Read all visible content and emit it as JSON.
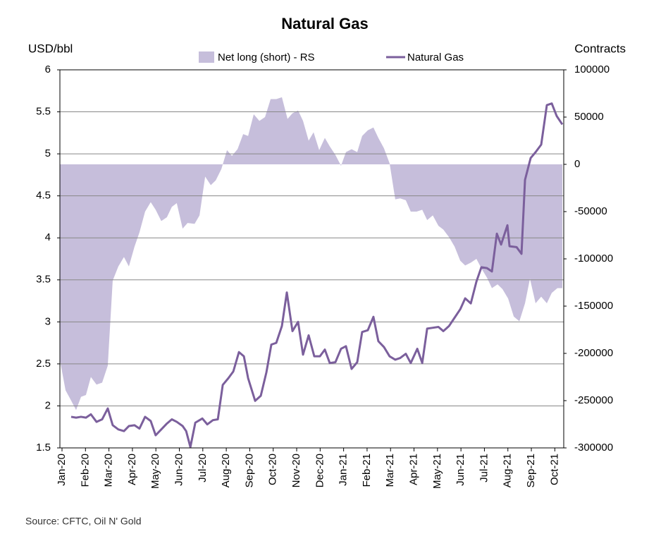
{
  "chart_data": {
    "type": "line",
    "title": "Natural Gas",
    "y_label": "USD/bbl",
    "y2_label": "Contracts",
    "source": "Source: CFTC, Oil N' Gold",
    "xlim": [
      -0.09,
      21.38
    ],
    "xticks": [
      {
        "value": 0,
        "label": "Jan-20"
      },
      {
        "value": 1,
        "label": "Feb-20"
      },
      {
        "value": 2,
        "label": "Mar-20"
      },
      {
        "value": 3,
        "label": "Apr-20"
      },
      {
        "value": 4,
        "label": "May-20"
      },
      {
        "value": 5,
        "label": "Jun-20"
      },
      {
        "value": 6,
        "label": "Jul-20"
      },
      {
        "value": 7,
        "label": "Aug-20"
      },
      {
        "value": 8,
        "label": "Sep-20"
      },
      {
        "value": 9,
        "label": "Oct-20"
      },
      {
        "value": 10,
        "label": "Nov-20"
      },
      {
        "value": 11,
        "label": "Dec-20"
      },
      {
        "value": 12,
        "label": "Jan-21"
      },
      {
        "value": 13,
        "label": "Feb-21"
      },
      {
        "value": 14,
        "label": "Mar-21"
      },
      {
        "value": 15,
        "label": "Apr-21"
      },
      {
        "value": 16,
        "label": "May-21"
      },
      {
        "value": 17,
        "label": "Jun-21"
      },
      {
        "value": 18,
        "label": "Jul-21"
      },
      {
        "value": 19,
        "label": "Aug-21"
      },
      {
        "value": 20,
        "label": "Sep-21"
      },
      {
        "value": 21,
        "label": "Oct-21"
      }
    ],
    "ylim": [
      1.5,
      6
    ],
    "yticks": [
      {
        "value": 1.5,
        "label": "1.5"
      },
      2,
      2.5,
      3,
      3.5,
      4,
      4.5,
      5,
      5.5,
      6
    ],
    "y2lim": [
      -300000,
      100000
    ],
    "y2ticks": [
      -300000,
      -250000,
      -200000,
      -150000,
      -100000,
      -50000,
      0,
      50000,
      100000
    ],
    "grid": true,
    "series": [
      {
        "name": "Net long (short) - RS",
        "type": "area",
        "axis": "y2",
        "color": "#c6bedb",
        "x": [
          -0.09,
          0.15,
          0.39,
          0.6,
          0.81,
          1.02,
          1.23,
          1.47,
          1.71,
          1.95,
          2.16,
          2.4,
          2.64,
          2.85,
          3.09,
          3.3,
          3.54,
          3.78,
          3.99,
          4.23,
          4.47,
          4.68,
          4.89,
          5.14,
          5.35,
          5.65,
          5.86,
          6.1,
          6.34,
          6.55,
          6.79,
          7.03,
          7.24,
          7.48,
          7.72,
          7.93,
          8.17,
          8.41,
          8.65,
          8.89,
          9.13,
          9.37,
          9.61,
          9.82,
          10.06,
          10.27,
          10.51,
          10.72,
          10.96,
          11.2,
          11.41,
          11.65,
          11.89,
          12.1,
          12.34,
          12.58,
          12.79,
          13.03,
          13.27,
          13.48,
          13.72,
          13.96,
          14.2,
          14.41,
          14.65,
          14.86,
          15.11,
          15.35,
          15.56,
          15.8,
          16.04,
          16.25,
          16.49,
          16.73,
          16.97,
          17.18,
          17.42,
          17.66,
          17.87,
          18.11,
          18.32,
          18.56,
          18.77,
          19.01,
          19.25,
          19.49,
          19.73,
          19.94,
          20.18,
          20.42,
          20.66,
          20.87,
          21.11,
          21.32
        ],
        "values": [
          -207000,
          -239000,
          -250000,
          -260000,
          -246000,
          -244000,
          -225000,
          -233000,
          -231000,
          -213000,
          -123000,
          -108000,
          -98000,
          -108000,
          -87000,
          -72000,
          -50000,
          -40000,
          -48000,
          -60000,
          -56000,
          -45000,
          -41000,
          -68000,
          -62000,
          -63000,
          -54000,
          -13000,
          -22000,
          -17000,
          -5000,
          15000,
          9000,
          16000,
          32000,
          30000,
          53000,
          46000,
          50000,
          69000,
          69000,
          71000,
          48000,
          54000,
          57000,
          46000,
          25000,
          34000,
          15000,
          28000,
          19000,
          10000,
          -1500,
          13000,
          16000,
          13000,
          30000,
          36000,
          39000,
          28000,
          17000,
          1000,
          -37000,
          -36000,
          -38000,
          -50000,
          -50000,
          -48000,
          -59000,
          -54000,
          -65000,
          -69000,
          -77000,
          -87000,
          -102000,
          -107000,
          -104000,
          -100000,
          -110000,
          -120000,
          -131000,
          -127000,
          -132000,
          -142000,
          -161000,
          -166000,
          -147000,
          -121000,
          -147000,
          -140000,
          -147000,
          -136000,
          -131000,
          -131000
        ]
      },
      {
        "name": "Natural Gas",
        "type": "line",
        "color": "#7b5f9c",
        "x": [
          0.39,
          0.6,
          0.81,
          1.02,
          1.23,
          1.47,
          1.71,
          1.95,
          2.16,
          2.4,
          2.64,
          2.85,
          3.09,
          3.3,
          3.54,
          3.78,
          3.99,
          4.23,
          4.47,
          4.68,
          4.89,
          5.14,
          5.29,
          5.47,
          5.68,
          5.98,
          6.19,
          6.43,
          6.64,
          6.85,
          7.09,
          7.3,
          7.54,
          7.75,
          7.93,
          8.23,
          8.47,
          8.71,
          8.92,
          9.13,
          9.37,
          9.58,
          9.82,
          10.06,
          10.27,
          10.51,
          10.75,
          10.99,
          11.2,
          11.41,
          11.65,
          11.89,
          12.1,
          12.34,
          12.58,
          12.79,
          13.03,
          13.27,
          13.48,
          13.72,
          13.96,
          14.2,
          14.41,
          14.65,
          14.86,
          15.14,
          15.35,
          15.56,
          15.8,
          16.04,
          16.25,
          16.49,
          16.73,
          16.97,
          17.18,
          17.42,
          17.66,
          17.87,
          18.11,
          18.32,
          18.53,
          18.71,
          18.98,
          19.07,
          19.37,
          19.58,
          19.73,
          19.97,
          20.18,
          20.42,
          20.66,
          20.87,
          21.08,
          21.32
        ],
        "values": [
          1.87,
          1.86,
          1.87,
          1.86,
          1.9,
          1.81,
          1.84,
          1.97,
          1.77,
          1.72,
          1.7,
          1.76,
          1.77,
          1.73,
          1.87,
          1.82,
          1.65,
          1.72,
          1.79,
          1.84,
          1.81,
          1.76,
          1.7,
          1.51,
          1.8,
          1.85,
          1.78,
          1.83,
          1.84,
          2.25,
          2.33,
          2.41,
          2.64,
          2.59,
          2.33,
          2.06,
          2.12,
          2.4,
          2.73,
          2.75,
          2.95,
          3.35,
          2.89,
          3.0,
          2.61,
          2.84,
          2.59,
          2.59,
          2.67,
          2.51,
          2.52,
          2.68,
          2.71,
          2.44,
          2.52,
          2.88,
          2.9,
          3.06,
          2.77,
          2.7,
          2.59,
          2.55,
          2.57,
          2.62,
          2.51,
          2.68,
          2.51,
          2.92,
          2.93,
          2.94,
          2.89,
          2.95,
          3.05,
          3.15,
          3.28,
          3.22,
          3.48,
          3.65,
          3.64,
          3.6,
          4.05,
          3.92,
          4.15,
          3.9,
          3.89,
          3.81,
          4.69,
          4.95,
          5.02,
          5.11,
          5.58,
          5.6,
          5.45,
          5.35
        ]
      }
    ]
  }
}
